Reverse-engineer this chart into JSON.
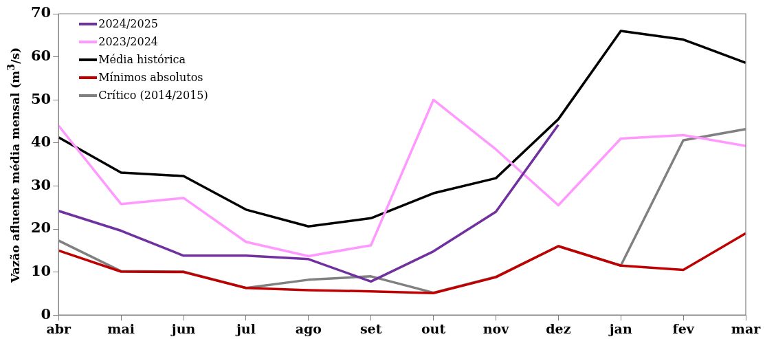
{
  "chart_data": {
    "type": "line",
    "ylabel": "Vazão afluente média mensal (m$^{3}$/s)",
    "categories": [
      "abr",
      "mai",
      "jun",
      "jul",
      "ago",
      "set",
      "out",
      "nov",
      "dez",
      "jan",
      "fev",
      "mar"
    ],
    "ylim": [
      0,
      70
    ],
    "yticks": [
      0,
      10,
      20,
      30,
      40,
      50,
      60,
      70
    ],
    "grid": false,
    "legend": "top left",
    "marker": "none",
    "line_style": "solid",
    "series": [
      {
        "name": "2024/2025",
        "color": "#7030a0",
        "values": [
          24.2,
          19.6,
          13.8,
          13.8,
          13,
          7.8,
          14.8,
          24,
          44.2,
          null,
          null,
          null
        ]
      },
      {
        "name": "2023/2024",
        "color": "#ff99ff",
        "values": [
          44,
          25.8,
          27.2,
          17,
          13.7,
          16.2,
          50,
          38.5,
          25.5,
          41,
          41.8,
          39.3
        ]
      },
      {
        "name": "Média histórica",
        "color": "#000000",
        "values": [
          41.3,
          33.1,
          32.3,
          24.5,
          20.6,
          22.5,
          28.3,
          31.8,
          45.5,
          66,
          64,
          58.6
        ]
      },
      {
        "name": "Mínimos absolutos",
        "color": "#c00000",
        "values": [
          15,
          10.1,
          10,
          6.3,
          5.8,
          5.5,
          5.1,
          8.8,
          16,
          11.5,
          10.5,
          19
        ]
      },
      {
        "name": "Crítico (2014/2015)",
        "color": "#808080",
        "values": [
          17.3,
          10.2,
          10.1,
          6.3,
          8.2,
          9,
          5.2,
          8.9,
          16,
          11.5,
          40.6,
          43.2
        ]
      }
    ]
  }
}
